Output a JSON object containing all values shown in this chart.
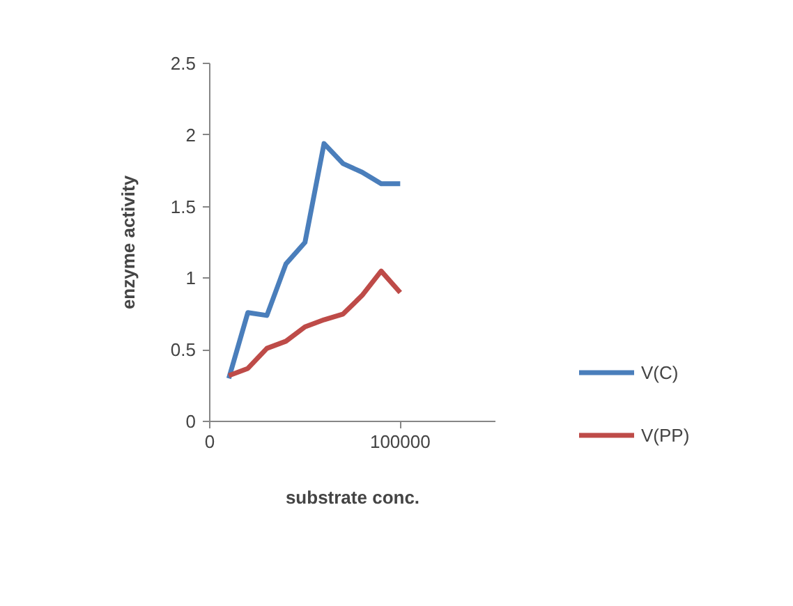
{
  "chart_data": {
    "type": "line",
    "xlabel": "substrate conc.",
    "ylabel": "enzyme activity",
    "x": [
      10000,
      20000,
      30000,
      40000,
      50000,
      60000,
      70000,
      80000,
      90000,
      100000
    ],
    "series": [
      {
        "name": "V(C)",
        "color": "#4a7ebb",
        "values": [
          0.3,
          0.76,
          0.74,
          1.1,
          1.25,
          1.94,
          1.8,
          1.74,
          1.66,
          1.66
        ]
      },
      {
        "name": "V(PP)",
        "color": "#be4b48",
        "values": [
          0.32,
          0.37,
          0.51,
          0.56,
          0.66,
          0.71,
          0.75,
          0.88,
          1.05,
          0.9
        ]
      }
    ],
    "xlim": [
      0,
      150000
    ],
    "xticks": [
      0,
      100000
    ],
    "ylim": [
      0,
      2.5
    ],
    "yticks": [
      0,
      0.5,
      1,
      1.5,
      2,
      2.5
    ],
    "grid": false,
    "legend": "right",
    "marker": "none",
    "line_style": "solid"
  }
}
